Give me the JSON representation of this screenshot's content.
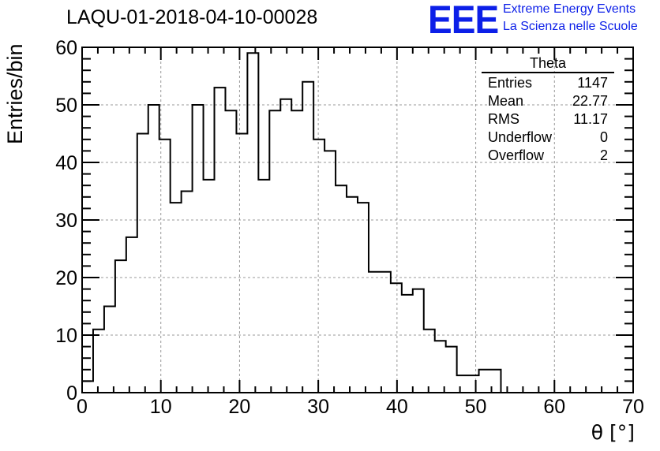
{
  "title": "LAQU-01-2018-04-10-00028",
  "logo": {
    "mark": "EEE",
    "line1": "Extreme Energy Events",
    "line2": "La Scienza nelle Scuole",
    "color": "#0c1fe8"
  },
  "stats_box": {
    "title": "Theta",
    "rows": [
      {
        "label": "Entries",
        "value": "1147"
      },
      {
        "label": "Mean",
        "value": "22.77"
      },
      {
        "label": "RMS",
        "value": "11.17"
      },
      {
        "label": "Underflow",
        "value": "0"
      },
      {
        "label": "Overflow",
        "value": "2"
      }
    ]
  },
  "chart_data": {
    "type": "bar",
    "histogram": true,
    "title": "LAQU-01-2018-04-10-00028",
    "xlabel": "θ [°]",
    "ylabel": "Entries/bin",
    "xlim": [
      0,
      70
    ],
    "ylim": [
      0,
      60
    ],
    "bin_width": 1.4,
    "xticks": [
      0,
      10,
      20,
      30,
      40,
      50,
      60,
      70
    ],
    "yticks": [
      0,
      10,
      20,
      30,
      40,
      50,
      60
    ],
    "grid": true,
    "line_color": "#000000",
    "values": [
      2,
      11,
      15,
      23,
      27,
      45,
      50,
      44,
      33,
      35,
      50,
      37,
      53,
      49,
      45,
      59,
      37,
      49,
      51,
      49,
      54,
      44,
      42,
      36,
      34,
      33,
      21,
      21,
      19,
      17,
      18,
      11,
      9,
      8,
      3,
      3,
      4,
      4,
      0,
      0,
      0,
      0,
      0,
      0,
      0,
      0,
      0,
      0,
      0,
      0
    ]
  }
}
